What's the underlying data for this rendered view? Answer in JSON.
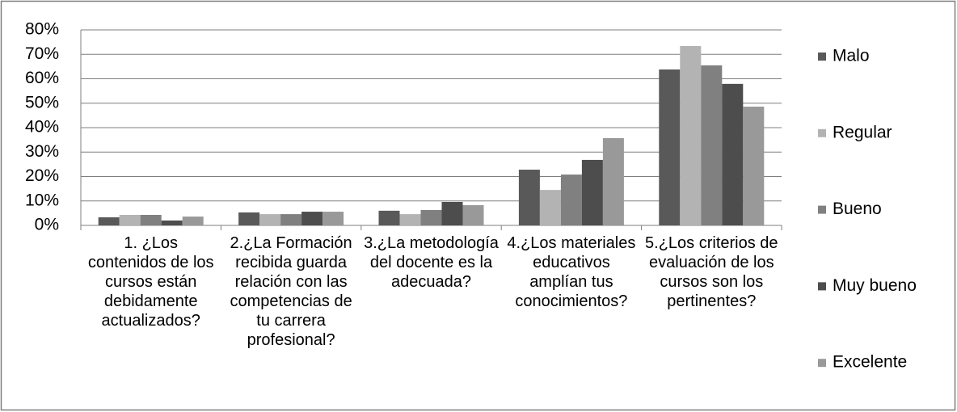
{
  "chart_data": {
    "type": "bar",
    "categories": [
      "1. ¿Los contenidos de los cursos están debidamente actualizados?",
      "2.¿La Formación recibida guarda relación con las competencias de tu carrera profesional?",
      "3.¿La metodología del docente es la adecuada?",
      "4.¿Los materiales educativos amplían tus conocimientos?",
      "5.¿Los criterios de evaluación de los cursos son los pertinentes?"
    ],
    "series": [
      {
        "name": "Malo",
        "color": "#595959",
        "values": [
          3.3,
          5.3,
          6,
          22.8,
          63.8
        ]
      },
      {
        "name": "Regular",
        "color": "#b3b3b3",
        "values": [
          4.3,
          4.6,
          4.6,
          14.5,
          73.4
        ]
      },
      {
        "name": "Bueno",
        "color": "#808080",
        "values": [
          4.3,
          4.6,
          6.3,
          20.8,
          65.5
        ]
      },
      {
        "name": "Muy bueno",
        "color": "#4d4d4d",
        "values": [
          2,
          5.6,
          9.6,
          26.8,
          57.9
        ]
      },
      {
        "name": "Excelente",
        "color": "#999999",
        "values": [
          3.6,
          5.6,
          8.3,
          35.7,
          48.6
        ]
      }
    ],
    "ylim": [
      0,
      80
    ],
    "yticks": [
      {
        "value": 0,
        "label": "0%"
      },
      {
        "value": 10,
        "label": "10%"
      },
      {
        "value": 20,
        "label": "20%"
      },
      {
        "value": 30,
        "label": "30%"
      },
      {
        "value": 40,
        "label": "40%"
      },
      {
        "value": 50,
        "label": "50%"
      },
      {
        "value": 60,
        "label": "60%"
      },
      {
        "value": 70,
        "label": "70%"
      },
      {
        "value": 80,
        "label": "80%"
      }
    ],
    "grid": true,
    "legend": "right"
  }
}
